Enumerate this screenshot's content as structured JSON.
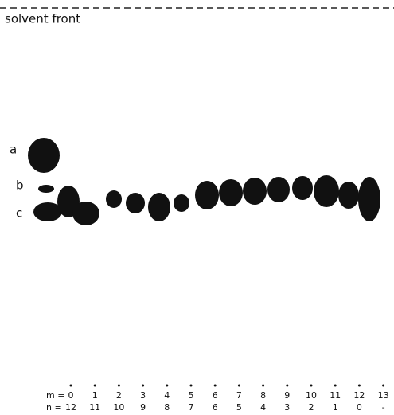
{
  "header": {
    "title": "solvent front"
  },
  "spot_labels": [
    "a",
    "b",
    "c"
  ],
  "rows": [
    {
      "label": "m =",
      "values": [
        "0",
        "1",
        "2",
        "3",
        "4",
        "5",
        "6",
        "7",
        "8",
        "9",
        "10",
        "11",
        "12",
        "13"
      ]
    },
    {
      "label": "n =",
      "values": [
        "12",
        "11",
        "10",
        "9",
        "8",
        "7",
        "6",
        "5",
        "4",
        "3",
        "2",
        "1",
        "0",
        "-"
      ]
    }
  ]
}
